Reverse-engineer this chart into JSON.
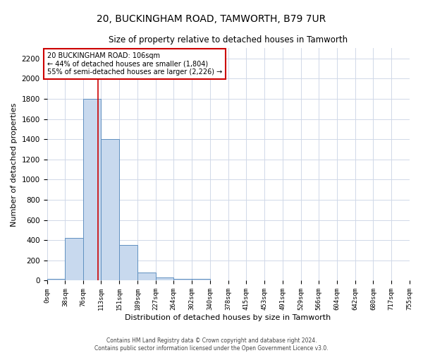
{
  "title": "20, BUCKINGHAM ROAD, TAMWORTH, B79 7UR",
  "subtitle": "Size of property relative to detached houses in Tamworth",
  "xlabel": "Distribution of detached houses by size in Tamworth",
  "ylabel": "Number of detached properties",
  "bin_edges": [
    0,
    38,
    76,
    113,
    151,
    189,
    227,
    264,
    302,
    340,
    378,
    415,
    453,
    491,
    529,
    566,
    604,
    642,
    680,
    717,
    755
  ],
  "bin_counts": [
    20,
    420,
    1800,
    1400,
    350,
    80,
    30,
    20,
    20,
    0,
    0,
    0,
    0,
    0,
    0,
    0,
    0,
    0,
    0,
    0
  ],
  "bar_color": "#c8d9ee",
  "bar_edge_color": "#6090c0",
  "grid_color": "#d0d8e8",
  "property_size": 106,
  "annotation_line1": "20 BUCKINGHAM ROAD: 106sqm",
  "annotation_line2": "← 44% of detached houses are smaller (1,804)",
  "annotation_line3": "55% of semi-detached houses are larger (2,226) →",
  "annotation_box_color": "#ffffff",
  "annotation_box_edge": "#cc0000",
  "red_line_color": "#cc0000",
  "ylim": [
    0,
    2300
  ],
  "yticks": [
    0,
    200,
    400,
    600,
    800,
    1000,
    1200,
    1400,
    1600,
    1800,
    2000,
    2200
  ],
  "footer_line1": "Contains HM Land Registry data © Crown copyright and database right 2024.",
  "footer_line2": "Contains public sector information licensed under the Open Government Licence v3.0."
}
